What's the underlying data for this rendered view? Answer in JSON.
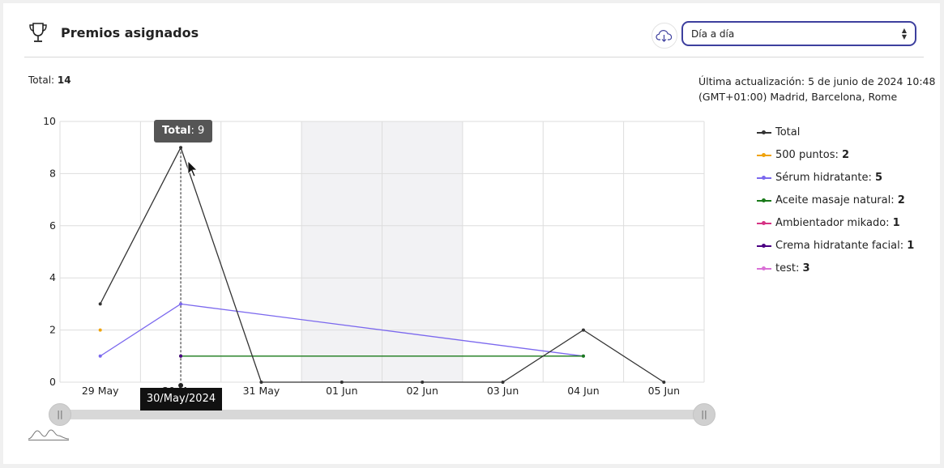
{
  "header": {
    "title": "Premios asignados",
    "icons": {
      "trophy": "trophy-icon",
      "download": "cloud-download-icon"
    },
    "period_select": {
      "value": "Día a día"
    }
  },
  "summary": {
    "total_label": "Total:",
    "total_value": "14",
    "updated_line1": "Última actualización: 5 de junio de 2024 10:48",
    "updated_line2": "(GMT+01:00) Madrid, Barcelona, Rome"
  },
  "tooltip": {
    "label": "Total",
    "value": "9",
    "x_label": "30/May/2024"
  },
  "slider": {
    "left_handle": "||",
    "right_handle": "||",
    "icon": "sparkline-icon"
  },
  "colors": {
    "Total": "#333333",
    "500 puntos": "#f0a30a",
    "Sérum hidratante": "#7b68ee",
    "Aceite masaje natural": "#1a7a1a",
    "Ambientador mikado": "#d63384",
    "Crema hidratante facial": "#4b0082",
    "test": "#da70d6",
    "weekend_band": "#f2f2f4",
    "grid": "#dddddd",
    "select_border": "#3d3f9e"
  },
  "chart_data": {
    "type": "line",
    "categories": [
      "29 May",
      "30 May",
      "31 May",
      "01 Jun",
      "02 Jun",
      "03 Jun",
      "04 Jun",
      "05 Jun"
    ],
    "ylim": [
      0,
      10
    ],
    "yticks": [
      "0",
      "2",
      "4",
      "6",
      "8",
      "10"
    ],
    "shaded_categories": [
      "01 Jun",
      "02 Jun"
    ],
    "series": [
      {
        "name": "Total",
        "total": "",
        "points": [
          [
            0,
            3
          ],
          [
            1,
            9
          ],
          [
            2,
            0
          ],
          [
            3,
            0
          ],
          [
            4,
            0
          ],
          [
            5,
            0
          ],
          [
            6,
            2
          ],
          [
            7,
            0
          ]
        ]
      },
      {
        "name": "500 puntos",
        "total": "2",
        "points": [
          [
            0,
            2
          ]
        ]
      },
      {
        "name": "Sérum hidratante",
        "total": "5",
        "points": [
          [
            0,
            1
          ],
          [
            1,
            3
          ],
          [
            6,
            1
          ]
        ]
      },
      {
        "name": "Aceite masaje natural",
        "total": "2",
        "points": [
          [
            1,
            1
          ],
          [
            6,
            1
          ]
        ]
      },
      {
        "name": "Ambientador mikado",
        "total": "1",
        "points": []
      },
      {
        "name": "Crema hidratante facial",
        "total": "1",
        "points": [
          [
            1,
            1
          ]
        ]
      },
      {
        "name": "test",
        "total": "3",
        "points": []
      }
    ]
  }
}
